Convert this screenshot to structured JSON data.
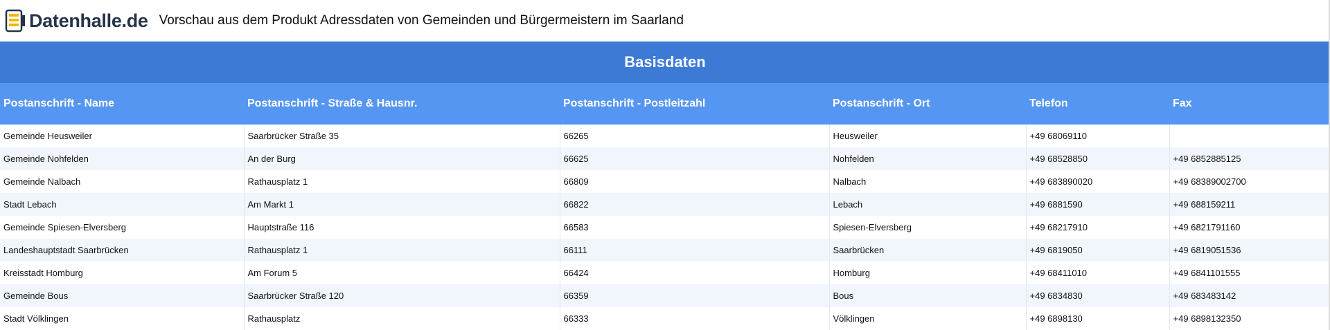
{
  "brand": {
    "name": "Datenhalle.de",
    "icon": "database-server-icon",
    "accent": "#f2b705"
  },
  "header": {
    "title": "Vorschau aus dem Produkt Adressdaten von Gemeinden und Bürgermeistern im Saarland"
  },
  "section": {
    "title": "Basisdaten"
  },
  "colors": {
    "section_bar": "#3d7ad6",
    "column_header": "#5596f2",
    "row_alt": "#f1f6fd"
  },
  "table": {
    "columns": [
      "Postanschrift - Name",
      "Postanschrift - Straße & Hausnr.",
      "Postanschrift - Postleitzahl",
      "Postanschrift - Ort",
      "Telefon",
      "Fax"
    ],
    "rows": [
      [
        "Gemeinde Heusweiler",
        "Saarbrücker Straße 35",
        "66265",
        "Heusweiler",
        "+49 68069110",
        ""
      ],
      [
        "Gemeinde Nohfelden",
        "An der Burg",
        "66625",
        "Nohfelden",
        "+49 68528850",
        "+49 6852885125"
      ],
      [
        "Gemeinde Nalbach",
        "Rathausplatz 1",
        "66809",
        "Nalbach",
        "+49 683890020",
        "+49 68389002700"
      ],
      [
        "Stadt Lebach",
        "Am Markt 1",
        "66822",
        "Lebach",
        "+49 6881590",
        "+49 688159211"
      ],
      [
        "Gemeinde Spiesen-Elversberg",
        "Hauptstraße 116",
        "66583",
        "Spiesen-Elversberg",
        "+49 68217910",
        "+49 6821791160"
      ],
      [
        "Landeshauptstadt Saarbrücken",
        "Rathausplatz 1",
        "66111",
        "Saarbrücken",
        "+49 6819050",
        "+49 6819051536"
      ],
      [
        "Kreisstadt Homburg",
        "Am Forum 5",
        "66424",
        "Homburg",
        "+49 68411010",
        "+49 6841101555"
      ],
      [
        "Gemeinde Bous",
        "Saarbrücker Straße 120",
        "66359",
        "Bous",
        "+49 6834830",
        "+49 683483142"
      ],
      [
        "Stadt Völklingen",
        "Rathausplatz",
        "66333",
        "Völklingen",
        "+49 6898130",
        "+49 6898132350"
      ]
    ]
  }
}
